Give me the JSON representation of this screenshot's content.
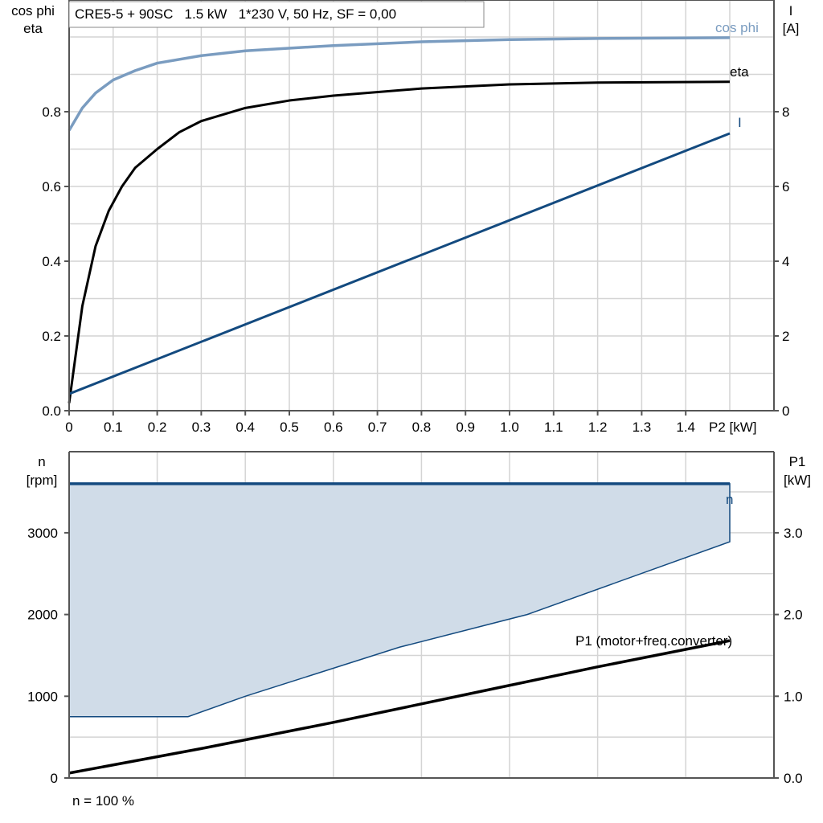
{
  "chart_data": [
    {
      "type": "line",
      "title": "CRE5-5 + 90SC   1.5 kW   1*230 V, 50 Hz, SF = 0,00",
      "xlabel": "P2 [kW]",
      "ylabel_left": [
        "cos phi",
        "eta"
      ],
      "ylabel_right": [
        "I",
        "[A]"
      ],
      "xlim": [
        0,
        1.5
      ],
      "ylim_left": [
        0,
        1.0
      ],
      "ylim_right": [
        0,
        10
      ],
      "x_ticks": [
        "0",
        "0.1",
        "0.2",
        "0.3",
        "0.4",
        "0.5",
        "0.6",
        "0.7",
        "0.8",
        "0.9",
        "1.0",
        "1.1",
        "1.2",
        "1.3",
        "1.4"
      ],
      "y_ticks_left": [
        "0.0",
        "0.2",
        "0.4",
        "0.6",
        "0.8"
      ],
      "y_ticks_right": [
        "0",
        "2",
        "4",
        "6",
        "8"
      ],
      "grid": true,
      "series": [
        {
          "name": "cos phi",
          "axis": "left",
          "color": "#7a9cc0",
          "x": [
            0,
            0.03,
            0.06,
            0.1,
            0.15,
            0.2,
            0.3,
            0.4,
            0.6,
            0.8,
            1.0,
            1.2,
            1.5
          ],
          "y": [
            0.75,
            0.81,
            0.85,
            0.885,
            0.91,
            0.93,
            0.95,
            0.963,
            0.977,
            0.987,
            0.993,
            0.996,
            0.998
          ]
        },
        {
          "name": "eta",
          "axis": "left",
          "color": "#000000",
          "x": [
            0,
            0.03,
            0.06,
            0.09,
            0.12,
            0.15,
            0.2,
            0.25,
            0.3,
            0.4,
            0.5,
            0.6,
            0.8,
            1.0,
            1.2,
            1.5
          ],
          "y": [
            0.02,
            0.28,
            0.44,
            0.535,
            0.6,
            0.65,
            0.7,
            0.745,
            0.775,
            0.81,
            0.83,
            0.843,
            0.862,
            0.873,
            0.878,
            0.88
          ]
        },
        {
          "name": "I",
          "axis": "right",
          "color": "#134a7f",
          "x": [
            0,
            1.5
          ],
          "y": [
            0.45,
            7.42
          ]
        }
      ]
    },
    {
      "type": "area",
      "xlim": [
        0,
        1.6
      ],
      "ylabel_left": [
        "n",
        "[rpm]"
      ],
      "ylabel_right": [
        "P1",
        "[kW]"
      ],
      "ylim_left": [
        0,
        4000
      ],
      "ylim_right": [
        0,
        4.0
      ],
      "y_ticks_left": [
        "0",
        "1000",
        "2000",
        "3000"
      ],
      "y_ticks_right": [
        "0.0",
        "1.0",
        "2.0",
        "3.0"
      ],
      "grid": true,
      "footer": "n = 100 %",
      "series": [
        {
          "name": "n",
          "axis": "left",
          "color": "#134a7f",
          "fill": "#d0dce8",
          "x": [
            0,
            1.5
          ],
          "y": [
            3600,
            3600
          ],
          "lower_x": [
            0,
            0.27,
            0.4,
            0.75,
            1.04,
            1.5
          ],
          "lower_y": [
            750,
            750,
            1000,
            1600,
            2000,
            2890
          ]
        },
        {
          "name": "P1 (motor+freq.converter)",
          "axis": "right",
          "color": "#000000",
          "x": [
            0,
            0.3,
            0.6,
            0.9,
            1.2,
            1.5
          ],
          "y": [
            0.06,
            0.36,
            0.68,
            1.02,
            1.36,
            1.68
          ]
        }
      ]
    }
  ]
}
